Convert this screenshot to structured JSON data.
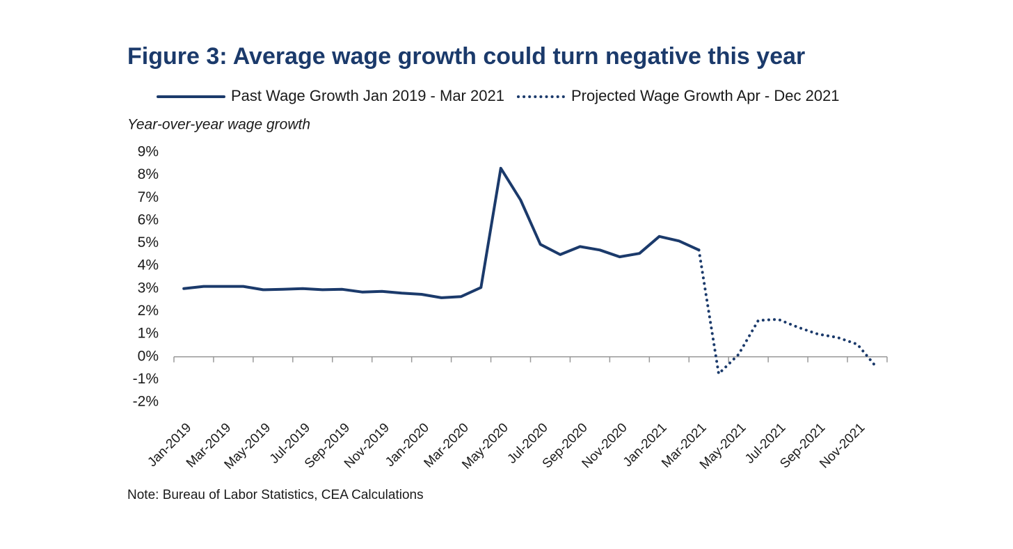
{
  "chart_data": {
    "type": "line",
    "title": "Figure 3: Average wage growth could turn negative this year",
    "y_axis_label": "Year-over-year wage growth",
    "note": "Note: Bureau of Labor Statistics, CEA Calculations",
    "categories": [
      "Jan-2019",
      null,
      "Mar-2019",
      null,
      "May-2019",
      null,
      "Jul-2019",
      null,
      "Sep-2019",
      null,
      "Nov-2019",
      null,
      "Jan-2020",
      null,
      "Mar-2020",
      null,
      "May-2020",
      null,
      "Jul-2020",
      null,
      "Sep-2020",
      null,
      "Nov-2020",
      null,
      "Jan-2021",
      null,
      "Mar-2021",
      null,
      "May-2021",
      null,
      "Jul-2021",
      null,
      "Sep-2021",
      null,
      "Nov-2021",
      null
    ],
    "series": [
      {
        "name": "Past Wage Growth Jan 2019 - Mar 2021",
        "color": "#1b3a6b",
        "style": "solid",
        "values": [
          3.0,
          3.1,
          3.1,
          3.1,
          2.95,
          2.97,
          3.0,
          2.95,
          2.97,
          2.85,
          2.88,
          2.8,
          2.75,
          2.6,
          2.65,
          3.05,
          8.3,
          6.9,
          4.95,
          4.5,
          4.85,
          4.7,
          4.4,
          4.55,
          5.3,
          5.1,
          4.7,
          null,
          null,
          null,
          null,
          null,
          null,
          null,
          null,
          null
        ]
      },
      {
        "name": "Projected Wage Growth Apr - Dec 2021",
        "color": "#1b3a6b",
        "style": "dotted",
        "values": [
          null,
          null,
          null,
          null,
          null,
          null,
          null,
          null,
          null,
          null,
          null,
          null,
          null,
          null,
          null,
          null,
          null,
          null,
          null,
          null,
          null,
          null,
          null,
          null,
          null,
          null,
          4.7,
          -0.75,
          0.1,
          1.6,
          1.65,
          1.3,
          1.0,
          0.85,
          0.55,
          -0.5
        ]
      }
    ],
    "ylim": [
      -2,
      9
    ],
    "yticks": [
      {
        "value": 9,
        "label": "9%"
      },
      {
        "value": 8,
        "label": "8%"
      },
      {
        "value": 7,
        "label": "7%"
      },
      {
        "value": 6,
        "label": "6%"
      },
      {
        "value": 5,
        "label": "5%"
      },
      {
        "value": 4,
        "label": "4%"
      },
      {
        "value": 3,
        "label": "3%"
      },
      {
        "value": 2,
        "label": "2%"
      },
      {
        "value": 1,
        "label": "1%"
      },
      {
        "value": 0,
        "label": "0%"
      },
      {
        "value": -1,
        "label": "-1%"
      },
      {
        "value": -2,
        "label": "-2%"
      }
    ],
    "grid": false,
    "legend": "top"
  }
}
